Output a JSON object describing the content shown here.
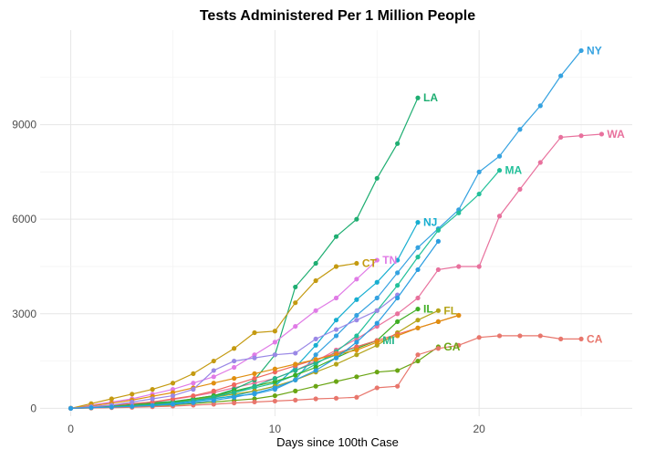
{
  "chart_data": {
    "type": "line",
    "title": "Tests Administered Per 1 Million People",
    "xlabel": "Days since 100th Case",
    "ylabel": "",
    "xlim": [
      -1.5,
      27.5
    ],
    "ylim": [
      -250,
      12000
    ],
    "x_ticks": [
      0,
      10,
      20
    ],
    "y_ticks": [
      0,
      3000,
      6000,
      9000
    ],
    "y_tick_labels": [
      "0",
      "3000",
      "6000",
      "9000"
    ],
    "grid": true,
    "legend": "none (labels at series ends)",
    "series": [
      {
        "name": "NY",
        "color": "#35A2E0",
        "x": [
          0,
          1,
          2,
          3,
          4,
          5,
          6,
          7,
          8,
          9,
          10,
          11,
          12,
          13,
          14,
          15,
          16,
          17,
          18,
          19,
          20,
          21,
          22,
          23,
          24,
          25
        ],
        "y": [
          0,
          20,
          50,
          80,
          120,
          180,
          250,
          320,
          380,
          450,
          600,
          900,
          1700,
          2300,
          2950,
          3500,
          4300,
          5100,
          5700,
          6300,
          7500,
          8000,
          8850,
          9600,
          10550,
          11350
        ]
      },
      {
        "name": "WA",
        "color": "#E8719D",
        "x": [
          0,
          1,
          2,
          3,
          4,
          5,
          6,
          7,
          8,
          9,
          10,
          11,
          12,
          13,
          14,
          15,
          16,
          17,
          18,
          19,
          20,
          21,
          22,
          23,
          24,
          25,
          26
        ],
        "y": [
          0,
          40,
          90,
          140,
          200,
          280,
          380,
          500,
          650,
          800,
          950,
          1200,
          1500,
          1850,
          2200,
          2600,
          3000,
          3500,
          4400,
          4500,
          4500,
          6100,
          6950,
          7800,
          8600,
          8650,
          8700
        ]
      },
      {
        "name": "LA",
        "color": "#1FAE72",
        "x": [
          0,
          1,
          2,
          3,
          4,
          5,
          6,
          7,
          8,
          9,
          10,
          11,
          12,
          13,
          14,
          15,
          16,
          17
        ],
        "y": [
          0,
          30,
          80,
          120,
          180,
          220,
          300,
          400,
          600,
          900,
          1700,
          3850,
          4600,
          5450,
          6000,
          7300,
          8400,
          9850
        ]
      },
      {
        "name": "MA",
        "color": "#22C09A",
        "x": [
          0,
          1,
          2,
          3,
          4,
          5,
          6,
          7,
          8,
          9,
          10,
          11,
          12,
          13,
          14,
          15,
          16,
          17,
          18,
          19,
          20,
          21
        ],
        "y": [
          0,
          30,
          60,
          100,
          150,
          200,
          280,
          380,
          500,
          650,
          800,
          1050,
          1400,
          1800,
          2300,
          3100,
          3900,
          4800,
          5650,
          6200,
          6800,
          7550
        ]
      },
      {
        "name": "NJ",
        "color": "#17AED0",
        "x": [
          0,
          1,
          2,
          3,
          4,
          5,
          6,
          7,
          8,
          9,
          10,
          11,
          12,
          13,
          14,
          15,
          16,
          17
        ],
        "y": [
          0,
          20,
          40,
          70,
          100,
          150,
          220,
          300,
          400,
          550,
          700,
          1300,
          2000,
          2800,
          3450,
          4000,
          4700,
          5900
        ]
      },
      {
        "name": "TN",
        "color": "#E07BE6",
        "x": [
          0,
          1,
          2,
          3,
          4,
          5,
          6,
          7,
          8,
          9,
          10,
          11,
          12,
          13,
          14,
          15
        ],
        "y": [
          0,
          100,
          200,
          300,
          450,
          600,
          800,
          1000,
          1300,
          1700,
          2100,
          2600,
          3100,
          3500,
          4100,
          4700
        ]
      },
      {
        "name": "CT",
        "color": "#C49A11",
        "x": [
          0,
          1,
          2,
          3,
          4,
          5,
          6,
          7,
          8,
          9,
          10,
          11,
          12,
          13,
          14
        ],
        "y": [
          0,
          150,
          300,
          450,
          600,
          800,
          1100,
          1500,
          1900,
          2400,
          2450,
          3350,
          4050,
          4500,
          4600
        ]
      },
      {
        "name": "FL",
        "color": "#B4A419",
        "x": [
          0,
          1,
          2,
          3,
          4,
          5,
          6,
          7,
          8,
          9,
          10,
          11,
          12,
          13,
          14,
          15,
          16,
          17,
          18
        ],
        "y": [
          0,
          30,
          60,
          100,
          150,
          200,
          280,
          350,
          450,
          550,
          700,
          900,
          1150,
          1400,
          1700,
          2000,
          2400,
          2800,
          3100
        ]
      },
      {
        "name": "IL",
        "color": "#3FAE24",
        "x": [
          0,
          1,
          2,
          3,
          4,
          5,
          6,
          7,
          8,
          9,
          10,
          11,
          12,
          13,
          14,
          15,
          16,
          17
        ],
        "y": [
          0,
          30,
          60,
          100,
          150,
          200,
          300,
          400,
          550,
          700,
          850,
          1050,
          1300,
          1600,
          1900,
          2150,
          2750,
          3150
        ]
      },
      {
        "name": "MI",
        "color": "#24B58A",
        "x": [
          0,
          1,
          2,
          3,
          4,
          5,
          6,
          7,
          8,
          9,
          10,
          11,
          12,
          13,
          14,
          15
        ],
        "y": [
          0,
          20,
          50,
          80,
          120,
          180,
          250,
          350,
          500,
          700,
          950,
          1200,
          1450,
          1700,
          1950,
          2150
        ]
      },
      {
        "name": "GA",
        "color": "#6AA514",
        "x": [
          0,
          1,
          2,
          3,
          4,
          5,
          6,
          7,
          8,
          9,
          10,
          11,
          12,
          13,
          14,
          15,
          16,
          17,
          18
        ],
        "y": [
          0,
          10,
          30,
          50,
          80,
          110,
          150,
          200,
          250,
          300,
          400,
          550,
          700,
          850,
          1000,
          1150,
          1200,
          1500,
          1950
        ]
      },
      {
        "name": "CA",
        "color": "#E8766C",
        "x": [
          0,
          1,
          2,
          3,
          4,
          5,
          6,
          7,
          8,
          9,
          10,
          11,
          12,
          13,
          14,
          15,
          16,
          17,
          18,
          19,
          20,
          21,
          22,
          23,
          24,
          25
        ],
        "y": [
          0,
          10,
          20,
          30,
          50,
          70,
          100,
          130,
          170,
          200,
          230,
          260,
          300,
          320,
          350,
          650,
          700,
          1700,
          1900,
          2000,
          2250,
          2300,
          2300,
          2300,
          2200,
          2200
        ]
      },
      {
        "name": "",
        "color": "#F0675E",
        "x": [
          0,
          1,
          2,
          3,
          4,
          5,
          6,
          7,
          8,
          9,
          10,
          11,
          12,
          13,
          14,
          15,
          16,
          17,
          18,
          19
        ],
        "y": [
          0,
          50,
          100,
          150,
          200,
          300,
          400,
          550,
          750,
          950,
          1150,
          1350,
          1550,
          1750,
          1950,
          2150,
          2350,
          2550,
          2750,
          2950
        ]
      },
      {
        "name": "",
        "color": "#E08F10",
        "x": [
          0,
          1,
          2,
          3,
          4,
          5,
          6,
          7,
          8,
          9,
          10,
          11,
          12,
          13,
          14,
          15,
          16,
          17,
          18,
          19
        ],
        "y": [
          0,
          80,
          160,
          260,
          380,
          500,
          650,
          800,
          950,
          1100,
          1250,
          1400,
          1550,
          1700,
          1850,
          2100,
          2300,
          2550,
          2750,
          2950
        ]
      },
      {
        "name": "",
        "color": "#9A88E6",
        "x": [
          0,
          1,
          2,
          3,
          4,
          5,
          6,
          7,
          8,
          9,
          10,
          11,
          12,
          13,
          14,
          15,
          16
        ],
        "y": [
          0,
          50,
          100,
          200,
          300,
          400,
          600,
          1200,
          1500,
          1600,
          1700,
          1750,
          2200,
          2500,
          2800,
          3100,
          3600
        ]
      },
      {
        "name": "",
        "color": "#2A9DE0",
        "x": [
          0,
          1,
          2,
          3,
          4,
          5,
          6,
          7,
          8,
          9,
          10,
          11,
          12,
          13,
          14,
          15,
          16,
          17,
          18
        ],
        "y": [
          0,
          20,
          40,
          60,
          90,
          130,
          180,
          250,
          350,
          480,
          650,
          900,
          1200,
          1600,
          2100,
          2700,
          3500,
          4400,
          5300
        ]
      }
    ]
  }
}
